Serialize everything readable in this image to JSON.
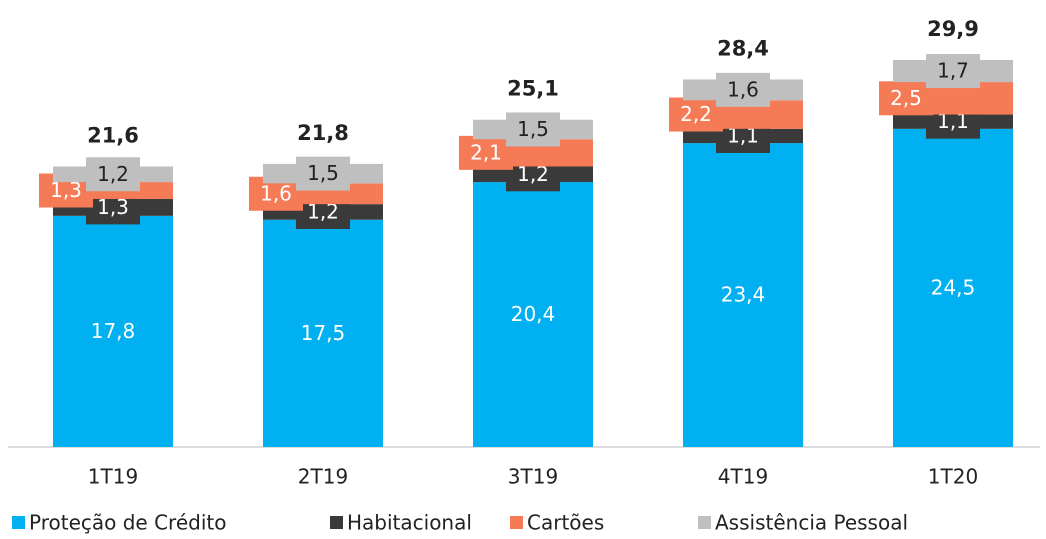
{
  "chart_data": {
    "type": "stacked_bar",
    "categories": [
      "1T19",
      "2T19",
      "3T19",
      "4T19",
      "1T20"
    ],
    "series": [
      {
        "name": "Proteção de Crédito",
        "color": "#00b0f0",
        "values": [
          17.8,
          17.5,
          20.4,
          23.4,
          24.5
        ],
        "value_labels": [
          "17,8",
          "17,5",
          "20,4",
          "23,4",
          "24,5"
        ]
      },
      {
        "name": "Habitacional",
        "color": "#3a3a3a",
        "values": [
          1.3,
          1.2,
          1.2,
          1.1,
          1.1
        ],
        "value_labels": [
          "1,3",
          "1,2",
          "1,2",
          "1,1",
          "1,1"
        ]
      },
      {
        "name": "Cartões",
        "color": "#f47b55",
        "values": [
          1.3,
          1.6,
          2.1,
          2.2,
          2.5
        ],
        "value_labels": [
          "1,3",
          "1,6",
          "2,1",
          "2,2",
          "2,5"
        ]
      },
      {
        "name": "Assistência Pessoal",
        "color": "#bfbfbf",
        "values": [
          1.2,
          1.5,
          1.5,
          1.6,
          1.7
        ],
        "value_labels": [
          "1,2",
          "1,5",
          "1,5",
          "1,6",
          "1,7"
        ]
      }
    ],
    "totals": [
      21.6,
      21.8,
      25.1,
      28.4,
      29.9
    ],
    "total_labels": [
      "21,6",
      "21,8",
      "25,1",
      "28,4",
      "29,9"
    ]
  }
}
